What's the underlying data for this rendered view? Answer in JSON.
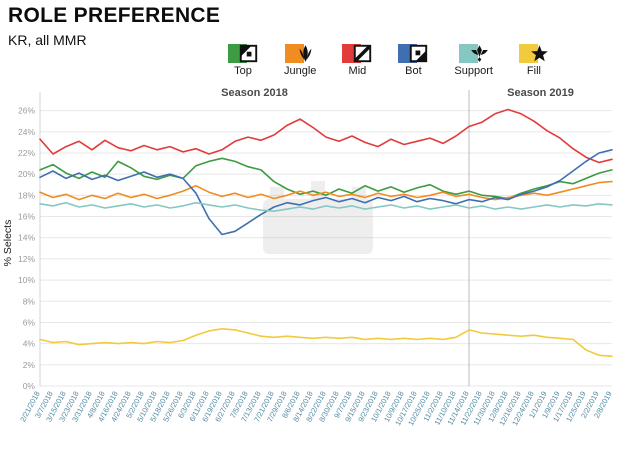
{
  "header": {
    "title": "ROLE PREFERENCE",
    "subtitle": "KR, all MMR"
  },
  "legend": {
    "items": [
      {
        "label": "Top",
        "color": "#3d9b41"
      },
      {
        "label": "Jungle",
        "color": "#f08c22"
      },
      {
        "label": "Mid",
        "color": "#e23b3b"
      },
      {
        "label": "Bot",
        "color": "#3f6fb0"
      },
      {
        "label": "Support",
        "color": "#85c8c3"
      },
      {
        "label": "Fill",
        "color": "#f2ca3d"
      }
    ]
  },
  "axis": {
    "x_label_color": "#4d87a0",
    "y_label_color": "#9b9b9b"
  },
  "chart_data": {
    "type": "line",
    "title": "ROLE PREFERENCE",
    "subtitle": "KR, all MMR",
    "ylabel": "% Selects",
    "ylim": [
      0,
      27
    ],
    "ytick_step": 2,
    "ytick_format": "percent",
    "grid": true,
    "legend_position": "top",
    "season_divider_category": "11/14/2018",
    "annotations": [
      {
        "text": "Season 2018",
        "side": "left"
      },
      {
        "text": "Season 2019",
        "side": "right"
      }
    ],
    "categories": [
      "2/21/2018",
      "3/7/2018",
      "3/15/2018",
      "3/23/2018",
      "3/31/2018",
      "4/8/2018",
      "4/16/2018",
      "4/24/2018",
      "5/2/2018",
      "5/10/2018",
      "5/18/2018",
      "5/26/2018",
      "6/3/2018",
      "6/11/2018",
      "6/19/2018",
      "6/27/2018",
      "7/5/2018",
      "7/13/2018",
      "7/21/2018",
      "7/29/2018",
      "8/6/2018",
      "8/14/2018",
      "8/22/2018",
      "8/30/2018",
      "9/7/2018",
      "9/15/2018",
      "9/23/2018",
      "10/1/2018",
      "10/9/2018",
      "10/17/2018",
      "10/25/2018",
      "11/2/2018",
      "11/10/2018",
      "11/14/2018",
      "11/22/2018",
      "11/30/2018",
      "12/8/2018",
      "12/16/2018",
      "12/24/2018",
      "1/1/2019",
      "1/9/2019",
      "1/17/2019",
      "1/25/2019",
      "2/2/2019",
      "2/8/2019"
    ],
    "series": [
      {
        "name": "Top",
        "color": "#3d9b41",
        "values": [
          20.4,
          20.9,
          20.1,
          19.6,
          20.2,
          19.7,
          21.2,
          20.6,
          19.8,
          19.5,
          19.9,
          19.6,
          20.8,
          21.2,
          21.5,
          21.2,
          20.7,
          20.4,
          19.3,
          18.6,
          18.1,
          18.4,
          18.0,
          18.6,
          18.2,
          18.9,
          18.4,
          18.8,
          18.3,
          18.7,
          19.0,
          18.4,
          18.1,
          18.4,
          18.0,
          17.9,
          17.7,
          18.2,
          18.6,
          18.9,
          19.3,
          19.1,
          19.6,
          20.1,
          20.4
        ]
      },
      {
        "name": "Jungle",
        "color": "#f08c22",
        "values": [
          18.3,
          17.8,
          18.1,
          17.6,
          18.0,
          17.7,
          18.2,
          17.8,
          18.1,
          17.7,
          18.0,
          18.4,
          18.9,
          18.3,
          17.9,
          18.2,
          17.8,
          18.1,
          17.7,
          18.0,
          18.4,
          18.0,
          18.3,
          17.9,
          18.1,
          17.8,
          18.2,
          17.9,
          18.1,
          17.8,
          18.0,
          18.3,
          17.9,
          18.1,
          17.8,
          17.6,
          17.8,
          18.0,
          18.2,
          18.0,
          18.3,
          18.6,
          18.9,
          19.2,
          19.3
        ]
      },
      {
        "name": "Mid",
        "color": "#e23b3b",
        "values": [
          23.3,
          21.9,
          22.6,
          23.1,
          22.3,
          23.2,
          22.5,
          22.2,
          22.7,
          22.3,
          22.6,
          22.1,
          22.4,
          21.9,
          22.3,
          23.1,
          23.5,
          23.2,
          23.7,
          24.6,
          25.2,
          24.4,
          23.5,
          23.1,
          23.6,
          23.0,
          22.6,
          23.3,
          22.8,
          23.1,
          23.4,
          22.9,
          23.6,
          24.5,
          24.9,
          25.7,
          26.1,
          25.7,
          25.0,
          24.1,
          23.4,
          22.4,
          21.6,
          21.1,
          21.4
        ]
      },
      {
        "name": "Bot",
        "color": "#3f6fb0",
        "values": [
          19.7,
          20.3,
          19.6,
          20.1,
          19.5,
          19.9,
          19.4,
          19.8,
          20.2,
          19.7,
          20.0,
          19.6,
          18.2,
          15.8,
          14.3,
          14.6,
          15.4,
          16.2,
          16.9,
          17.3,
          17.1,
          17.5,
          17.8,
          17.4,
          17.7,
          17.3,
          17.8,
          17.5,
          17.9,
          17.4,
          17.7,
          17.5,
          17.2,
          17.6,
          17.4,
          17.8,
          17.6,
          18.1,
          18.4,
          18.8,
          19.4,
          20.3,
          21.2,
          22.0,
          22.3
        ]
      },
      {
        "name": "Support",
        "color": "#85c8c3",
        "values": [
          17.2,
          17.0,
          17.3,
          16.9,
          17.1,
          16.8,
          17.0,
          17.2,
          16.9,
          17.1,
          16.8,
          17.0,
          17.3,
          17.1,
          16.9,
          17.1,
          16.8,
          16.6,
          16.5,
          16.7,
          16.9,
          16.7,
          17.0,
          16.8,
          17.0,
          16.7,
          16.9,
          17.1,
          16.8,
          17.0,
          16.7,
          16.9,
          17.1,
          16.8,
          17.0,
          16.7,
          16.9,
          16.7,
          16.9,
          17.1,
          16.9,
          17.1,
          17.0,
          17.2,
          17.1
        ]
      },
      {
        "name": "Fill",
        "color": "#f2ca3d",
        "values": [
          4.4,
          4.1,
          4.2,
          3.9,
          4.0,
          4.1,
          4.0,
          4.1,
          4.0,
          4.2,
          4.1,
          4.3,
          4.8,
          5.2,
          5.4,
          5.3,
          5.0,
          4.7,
          4.6,
          4.7,
          4.6,
          4.5,
          4.6,
          4.5,
          4.6,
          4.4,
          4.5,
          4.4,
          4.5,
          4.4,
          4.5,
          4.4,
          4.6,
          5.3,
          5.0,
          4.9,
          4.8,
          4.7,
          4.8,
          4.6,
          4.5,
          4.4,
          3.4,
          2.9,
          2.8
        ]
      }
    ]
  }
}
